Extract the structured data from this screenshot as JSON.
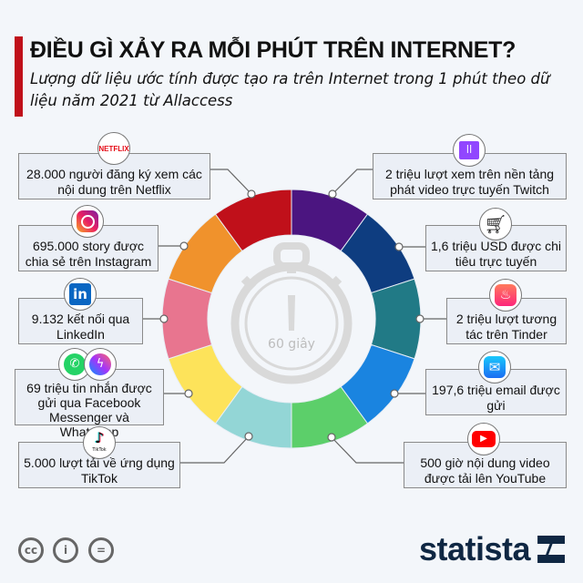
{
  "header": {
    "title": "ĐIỀU GÌ XẢY RA MỖI PHÚT TRÊN INTERNET?",
    "subtitle": "Lượng dữ liệu ước tính được tạo ra trên Internet trong 1 phút theo dữ liệu năm 2021 từ Allaccess"
  },
  "center": {
    "label": "60 giây",
    "icon": "stopwatch-icon"
  },
  "ring_colors": [
    "#4b1580",
    "#0e3d80",
    "#217a86",
    "#1a84e0",
    "#5ccf6a",
    "#93d6d6",
    "#fde35a",
    "#e8758f",
    "#f0922c",
    "#c0101a"
  ],
  "items": [
    {
      "id": "netflix",
      "text": "28.000 người đăng ký xem các nội dung trên Netflix",
      "icon": "netflix-icon",
      "logo_text": "NETFLIX"
    },
    {
      "id": "instagram",
      "text": "695.000 story được chia sẻ trên Instagram",
      "icon": "instagram-icon"
    },
    {
      "id": "linkedin",
      "text": "9.132 kết nối qua LinkedIn",
      "icon": "linkedin-icon",
      "logo_text": "in"
    },
    {
      "id": "messenger",
      "text": "69 triệu tin nhắn được gửi qua Facebook Messenger và WhatsApp",
      "icon": "whatsapp-messenger-icon"
    },
    {
      "id": "tiktok",
      "text": "5.000 lượt tải về ứng dụng TikTok",
      "icon": "tiktok-icon",
      "logo_text": "TikTok"
    },
    {
      "id": "twitch",
      "text": "2 triệu lượt xem trên nền tảng phát video trực tuyến Twitch",
      "icon": "twitch-icon"
    },
    {
      "id": "shopping",
      "text": "1,6 triệu USD được chi tiêu trực tuyến",
      "icon": "shopping-cart-icon"
    },
    {
      "id": "tinder",
      "text": "2 triệu lượt tương tác trên Tinder",
      "icon": "tinder-flame-icon"
    },
    {
      "id": "email",
      "text": "197,6 triệu email được gửi",
      "icon": "mail-icon"
    },
    {
      "id": "youtube",
      "text": "500 giờ nội dung video được tải lên YouTube",
      "icon": "youtube-icon"
    }
  ],
  "footer": {
    "brand": "statista",
    "license_icons": [
      "cc-icon",
      "attribution-icon",
      "no-derivatives-icon"
    ]
  }
}
